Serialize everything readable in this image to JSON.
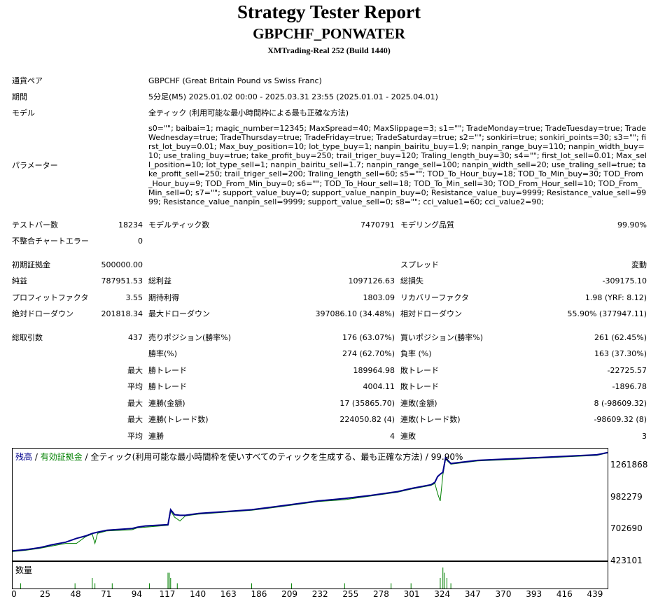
{
  "header": {
    "title": "Strategy Tester Report",
    "symbol": "GBPCHF_PONWATER",
    "build": "XMTrading-Real 252 (Build 1440)"
  },
  "info": {
    "pair_label": "通貨ペア",
    "pair_value": "GBPCHF (Great Britain Pound vs Swiss Franc)",
    "period_label": "期間",
    "period_value": "5分足(M5) 2025.01.02 00:00 - 2025.03.31 23:55 (2025.01.01 - 2025.04.01)",
    "model_label": "モデル",
    "model_value": "全ティック (利用可能な最小時間枠による最も正確な方法)",
    "params_label": "パラメーター",
    "params_value": "s0=\"\"; baibai=1; magic_number=12345; MaxSpread=40; MaxSlippage=3; s1=\"\"; TradeMonday=true; TradeTuesday=true; TradeWednesday=true; TradeThursday=true; TradeFriday=true; TradeSaturday=true; s2=\"\"; sonkiri=true; sonkiri_points=30; s3=\"\"; first_lot_buy=0.01; Max_buy_position=10; lot_type_buy=1; nanpin_bairitu_buy=1.9; nanpin_range_buy=110; nanpin_width_buy=10; use_traling_buy=true; take_profit_buy=250; trail_triger_buy=120; Traling_length_buy=30; s4=\"\"; first_lot_sell=0.01; Max_sell_position=10; lot_type_sell=1; nanpin_bairitu_sell=1.7; nanpin_range_sell=100; nanpin_width_sell=20; use_traling_sell=true; take_profit_sell=250; trail_triger_sell=200; Traling_length_sell=60; s5=\"\"; TOD_To_Hour_buy=18; TOD_To_Min_buy=30; TOD_From_Hour_buy=9; TOD_From_Min_buy=0; s6=\"\"; TOD_To_Hour_sell=18; TOD_To_Min_sell=30; TOD_From_Hour_sell=10; TOD_From_Min_sell=0; s7=\"\"; support_value_buy=0; support_value_nanpin_buy=0; Resistance_value_buy=9999; Resistance_value_sell=9999; Resistance_value_nanpin_sell=9999; support_value_sell=0; s8=\"\"; cci_value1=60; cci_value2=90;"
  },
  "stats": {
    "bars_label": "テストバー数",
    "bars_value": "18234",
    "ticks_label": "モデルティック数",
    "ticks_value": "7470791",
    "quality_label": "モデリング品質",
    "quality_value": "99.90%",
    "mismatch_label": "不整合チャートエラー",
    "mismatch_value": "0",
    "deposit_label": "初期証拠金",
    "deposit_value": "500000.00",
    "spread_label": "スプレッド",
    "spread_value": "変動",
    "net_label": "純益",
    "net_value": "787951.53",
    "gross_profit_label": "総利益",
    "gross_profit_value": "1097126.63",
    "gross_loss_label": "総損失",
    "gross_loss_value": "-309175.10",
    "pf_label": "プロフィットファクタ",
    "pf_value": "3.55",
    "payoff_label": "期待利得",
    "payoff_value": "1803.09",
    "recovery_label": "リカバリーファクタ",
    "recovery_value": "1.98 (YRF: 8.12)",
    "abs_dd_label": "絶対ドローダウン",
    "abs_dd_value": "201818.34",
    "max_dd_label": "最大ドローダウン",
    "max_dd_value": "397086.10 (34.48%)",
    "rel_dd_label": "相対ドローダウン",
    "rel_dd_value": "55.90% (377947.11)",
    "total_trades_label": "総取引数",
    "total_trades_value": "437",
    "short_label": "売りポジション(勝率%)",
    "short_value": "176 (63.07%)",
    "long_label": "買いポジション(勝率%)",
    "long_value": "261 (62.45%)",
    "winrate_label": "勝率(%)",
    "winrate_value": "274 (62.70%)",
    "lossrate_label": "負率 (%)",
    "lossrate_value": "163 (37.30%)",
    "q_max": "最大",
    "q_avg": "平均",
    "largest_win_label": "勝トレード",
    "largest_win_value": "189964.98",
    "largest_loss_label": "敗トレード",
    "largest_loss_value": "-22725.57",
    "avg_win_label": "勝トレード",
    "avg_win_value": "4004.11",
    "avg_loss_label": "敗トレード",
    "avg_loss_value": "-1896.78",
    "max_cons_win_amt_label": "連勝(金額)",
    "max_cons_win_amt_value": "17 (35865.70)",
    "max_cons_loss_amt_label": "連敗(金額)",
    "max_cons_loss_amt_value": "8 (-98609.32)",
    "max_cons_win_cnt_label": "連勝(トレード数)",
    "max_cons_win_cnt_value": "224050.82 (4)",
    "max_cons_loss_cnt_label": "連敗(トレード数)",
    "max_cons_loss_cnt_value": "-98609.32 (8)",
    "avg_cons_win_label": "連勝",
    "avg_cons_win_value": "4",
    "avg_cons_loss_label": "連敗",
    "avg_cons_loss_value": "3"
  },
  "chart_legend": {
    "balance": "残高",
    "sep1": " / ",
    "equity": "有効証拠金",
    "sep2": " / ",
    "rest": "全ティック(利用可能な最小時間枠を使いすべてのティックを生成する、最も正確な方法) / 99.90%",
    "volume": "数量"
  },
  "colors": {
    "balance": "#00008b",
    "equity": "#008000",
    "legend_balance": "#00008b",
    "legend_equity": "#008000"
  },
  "chart_data": {
    "type": "line",
    "y_ticks": [
      "1261868",
      "982279",
      "702690",
      "423101"
    ],
    "x_ticks": [
      "0",
      "25",
      "48",
      "71",
      "94",
      "117",
      "140",
      "163",
      "186",
      "209",
      "232",
      "255",
      "278",
      "301",
      "324",
      "347",
      "370",
      "393",
      "416",
      "439"
    ],
    "ylim": [
      423101,
      1320000
    ],
    "xlim": [
      0,
      448
    ],
    "series": [
      {
        "name": "残高",
        "x": [
          0,
          10,
          20,
          30,
          40,
          48,
          55,
          60,
          62,
          64,
          71,
          90,
          94,
          100,
          117,
          119,
          122,
          126,
          130,
          140,
          160,
          180,
          195,
          209,
          230,
          250,
          270,
          290,
          300,
          315,
          318,
          320,
          322,
          324,
          326,
          330,
          350,
          380,
          410,
          440,
          448
        ],
        "y": [
          500000,
          510000,
          525000,
          550000,
          570000,
          600000,
          620000,
          640000,
          645000,
          650000,
          665000,
          680000,
          690000,
          700000,
          710000,
          830000,
          790000,
          785000,
          785000,
          800000,
          815000,
          830000,
          850000,
          870000,
          900000,
          920000,
          945000,
          975000,
          1000000,
          1030000,
          1050000,
          1095000,
          1115000,
          1130000,
          1245000,
          1200000,
          1225000,
          1240000,
          1255000,
          1270000,
          1288000
        ]
      },
      {
        "name": "有効証拠金",
        "x": [
          0,
          10,
          20,
          30,
          40,
          48,
          55,
          60,
          62,
          64,
          71,
          90,
          94,
          100,
          117,
          119,
          122,
          126,
          130,
          140,
          160,
          180,
          195,
          209,
          230,
          250,
          270,
          290,
          300,
          315,
          318,
          320,
          322,
          324,
          326,
          330,
          350,
          380,
          410,
          440,
          448
        ],
        "y": [
          495000,
          505000,
          520000,
          540000,
          560000,
          560000,
          615000,
          635000,
          560000,
          640000,
          660000,
          670000,
          685000,
          690000,
          705000,
          820000,
          770000,
          740000,
          780000,
          795000,
          810000,
          825000,
          845000,
          865000,
          895000,
          910000,
          940000,
          970000,
          995000,
          1025000,
          1040000,
          960000,
          900000,
          1110000,
          1235000,
          1195000,
          1220000,
          1235000,
          1250000,
          1265000,
          1285000
        ]
      }
    ],
    "volume": {
      "x": [
        6,
        47,
        60,
        62,
        75,
        103,
        117,
        118,
        119,
        124,
        180,
        210,
        250,
        285,
        300,
        322,
        324,
        325,
        327,
        330
      ],
      "values": [
        1,
        1,
        2,
        1,
        1,
        1,
        3,
        3,
        2,
        1,
        1,
        1,
        1,
        1,
        1,
        2,
        4,
        3,
        2,
        1
      ]
    }
  }
}
